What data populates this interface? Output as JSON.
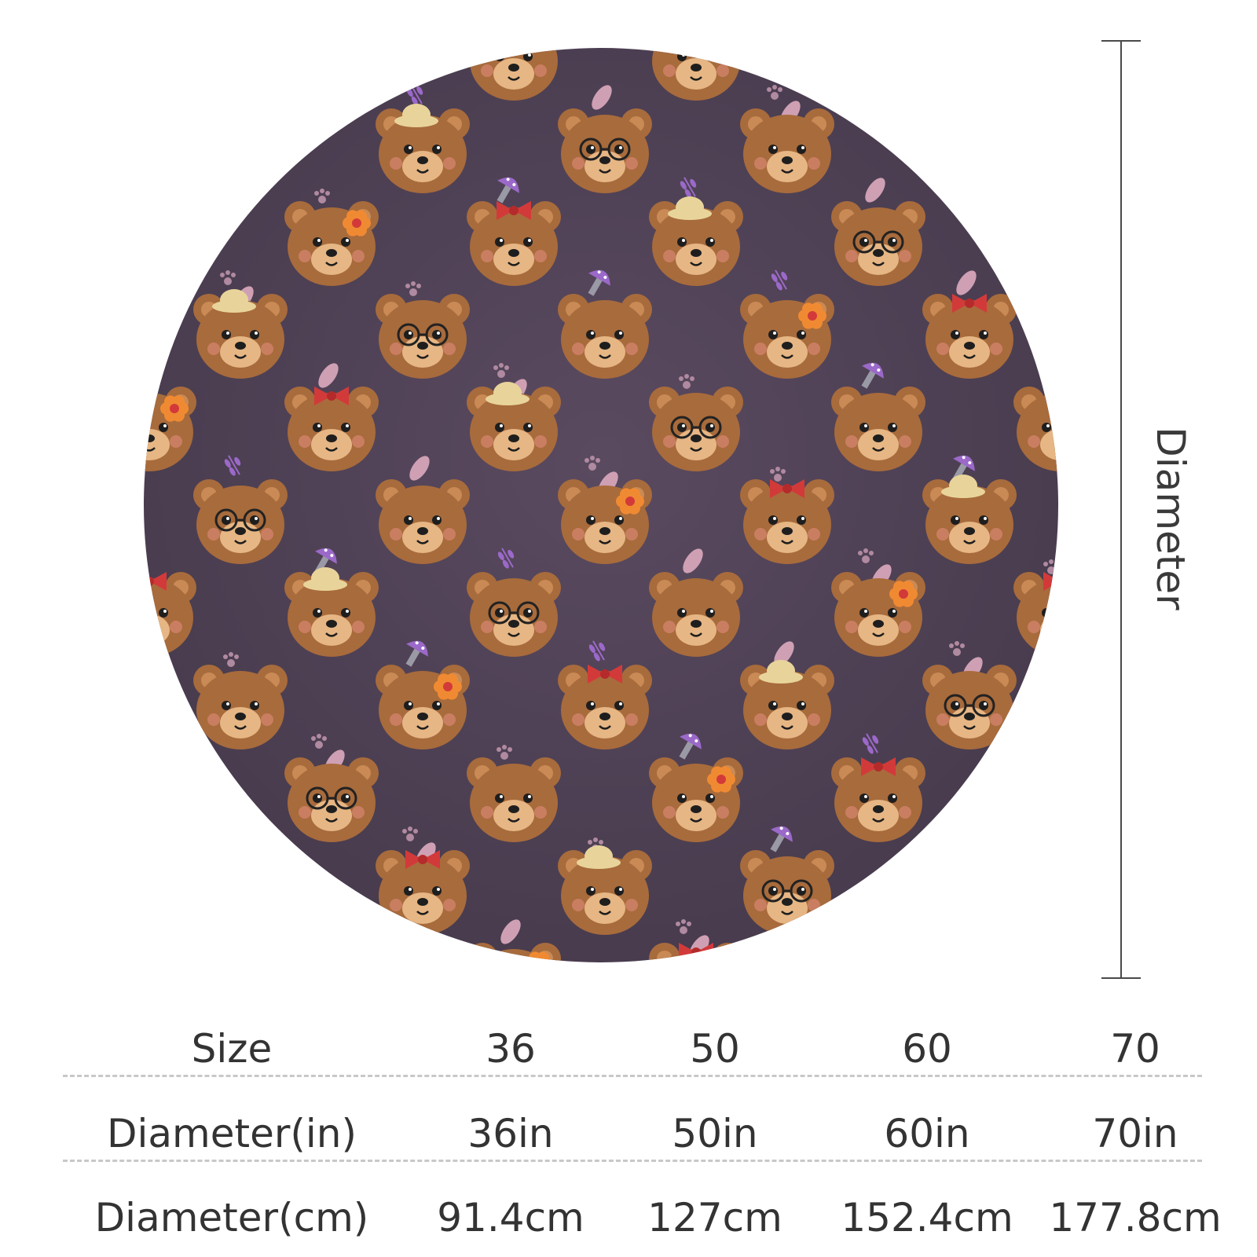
{
  "rug": {
    "background_color": "#4b3e52",
    "bear_color": "#a86b3c",
    "muzzle_color": "#e6b684",
    "accent_colors": [
      "#f08a32",
      "#d23a3a",
      "#e8d49a",
      "#9b69c9",
      "#cfa0b4"
    ],
    "icons": [
      "bear-face-icon",
      "flower-icon",
      "bow-icon",
      "hat-icon",
      "glasses-icon",
      "mushroom-icon",
      "leaf-icon",
      "paw-print-icon",
      "sprig-icon"
    ]
  },
  "dimension": {
    "label": "Diameter"
  },
  "size_table": {
    "header": "Size",
    "row_in_label": "Diameter(in)",
    "row_cm_label": "Diameter(cm)",
    "columns": [
      {
        "size": "36",
        "in": "36in",
        "cm": "91.4cm"
      },
      {
        "size": "50",
        "in": "50in",
        "cm": "127cm"
      },
      {
        "size": "60",
        "in": "60in",
        "cm": "152.4cm"
      },
      {
        "size": "70",
        "in": "70in",
        "cm": "177.8cm"
      }
    ]
  }
}
